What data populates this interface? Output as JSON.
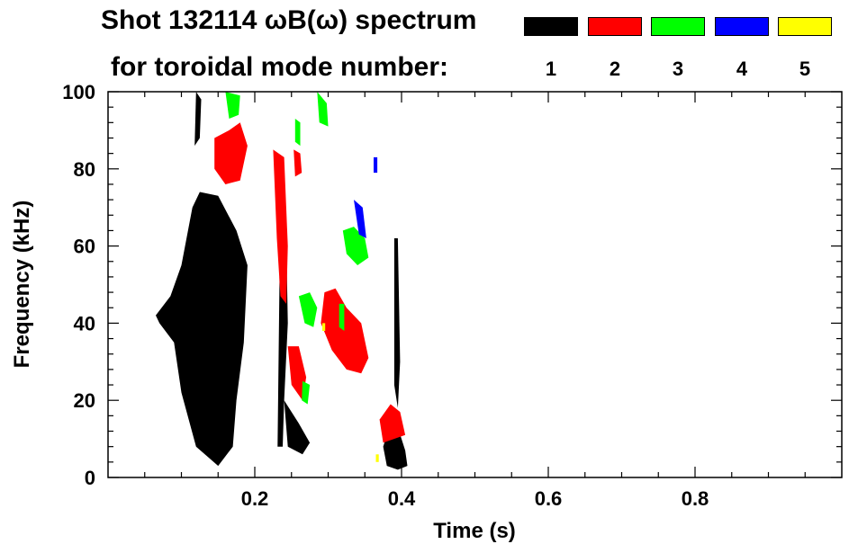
{
  "title": {
    "line1": "Shot 132114 ωB(ω) spectrum",
    "line2": "for toroidal mode number:"
  },
  "legend": [
    {
      "label": "1",
      "color": "#000000"
    },
    {
      "label": "2",
      "color": "#ff0000"
    },
    {
      "label": "3",
      "color": "#00ff00"
    },
    {
      "label": "4",
      "color": "#0000ff"
    },
    {
      "label": "5",
      "color": "#ffff00"
    }
  ],
  "chart_data": {
    "type": "heatmap",
    "title": "Shot 132114 ωB(ω) spectrum for toroidal mode number",
    "xlabel": "Time (s)",
    "ylabel": "Frequency (kHz)",
    "xlim": [
      0.0,
      1.0
    ],
    "ylim": [
      0,
      100
    ],
    "xticks": [
      0.2,
      0.4,
      0.6,
      0.8
    ],
    "xtick_labels": [
      "0.2",
      "0.4",
      "0.6",
      "0.8"
    ],
    "yticks": [
      0,
      20,
      40,
      60,
      80,
      100
    ],
    "ytick_labels": [
      "0",
      "20",
      "40",
      "60",
      "80",
      "100"
    ],
    "grid": false,
    "regions": [
      {
        "mode": 1,
        "color": "#000000",
        "polygon": [
          [
            0.065,
            42
          ],
          [
            0.085,
            47
          ],
          [
            0.1,
            55
          ],
          [
            0.115,
            70
          ],
          [
            0.125,
            74
          ],
          [
            0.15,
            73
          ],
          [
            0.175,
            64
          ],
          [
            0.19,
            55
          ],
          [
            0.185,
            35
          ],
          [
            0.175,
            20
          ],
          [
            0.17,
            8
          ],
          [
            0.15,
            3
          ],
          [
            0.12,
            8
          ],
          [
            0.1,
            22
          ],
          [
            0.09,
            35
          ],
          [
            0.07,
            40
          ]
        ]
      },
      {
        "mode": 1,
        "color": "#000000",
        "polygon": [
          [
            0.12,
            100
          ],
          [
            0.127,
            98
          ],
          [
            0.125,
            88
          ],
          [
            0.118,
            86
          ]
        ]
      },
      {
        "mode": 1,
        "color": "#000000",
        "polygon": [
          [
            0.235,
            72
          ],
          [
            0.242,
            71
          ],
          [
            0.245,
            40
          ],
          [
            0.24,
            20
          ],
          [
            0.238,
            8
          ],
          [
            0.231,
            8
          ],
          [
            0.233,
            40
          ]
        ]
      },
      {
        "mode": 1,
        "color": "#000000",
        "polygon": [
          [
            0.24,
            20
          ],
          [
            0.26,
            14
          ],
          [
            0.275,
            9
          ],
          [
            0.265,
            6
          ],
          [
            0.245,
            8
          ]
        ]
      },
      {
        "mode": 1,
        "color": "#000000",
        "polygon": [
          [
            0.375,
            8
          ],
          [
            0.385,
            14
          ],
          [
            0.395,
            13
          ],
          [
            0.405,
            7
          ],
          [
            0.408,
            3
          ],
          [
            0.395,
            2
          ],
          [
            0.38,
            3
          ]
        ]
      },
      {
        "mode": 1,
        "color": "#000000",
        "polygon": [
          [
            0.39,
            62
          ],
          [
            0.395,
            62
          ],
          [
            0.398,
            30
          ],
          [
            0.395,
            18
          ],
          [
            0.39,
            24
          ]
        ]
      },
      {
        "mode": 2,
        "color": "#ff0000",
        "polygon": [
          [
            0.145,
            88
          ],
          [
            0.165,
            90
          ],
          [
            0.18,
            92
          ],
          [
            0.19,
            86
          ],
          [
            0.18,
            77
          ],
          [
            0.16,
            76
          ],
          [
            0.145,
            80
          ]
        ]
      },
      {
        "mode": 2,
        "color": "#ff0000",
        "polygon": [
          [
            0.225,
            85
          ],
          [
            0.24,
            83
          ],
          [
            0.245,
            60
          ],
          [
            0.243,
            45
          ],
          [
            0.235,
            47
          ],
          [
            0.23,
            62
          ]
        ]
      },
      {
        "mode": 2,
        "color": "#ff0000",
        "polygon": [
          [
            0.245,
            34
          ],
          [
            0.25,
            24
          ],
          [
            0.265,
            20
          ],
          [
            0.27,
            26
          ],
          [
            0.26,
            34
          ]
        ]
      },
      {
        "mode": 2,
        "color": "#ff0000",
        "polygon": [
          [
            0.295,
            48
          ],
          [
            0.31,
            49
          ],
          [
            0.325,
            44
          ],
          [
            0.345,
            40
          ],
          [
            0.355,
            31
          ],
          [
            0.345,
            27
          ],
          [
            0.325,
            28
          ],
          [
            0.305,
            33
          ],
          [
            0.29,
            40
          ]
        ]
      },
      {
        "mode": 2,
        "color": "#ff0000",
        "polygon": [
          [
            0.37,
            15
          ],
          [
            0.385,
            19
          ],
          [
            0.398,
            17
          ],
          [
            0.405,
            11
          ],
          [
            0.375,
            9
          ]
        ]
      },
      {
        "mode": 2,
        "color": "#ff0000",
        "polygon": [
          [
            0.253,
            85
          ],
          [
            0.262,
            84
          ],
          [
            0.264,
            79
          ],
          [
            0.255,
            78
          ]
        ]
      },
      {
        "mode": 3,
        "color": "#00ff00",
        "polygon": [
          [
            0.16,
            100
          ],
          [
            0.18,
            99
          ],
          [
            0.178,
            94
          ],
          [
            0.165,
            93
          ]
        ]
      },
      {
        "mode": 3,
        "color": "#00ff00",
        "polygon": [
          [
            0.285,
            100
          ],
          [
            0.298,
            97
          ],
          [
            0.3,
            91
          ],
          [
            0.288,
            92
          ]
        ]
      },
      {
        "mode": 3,
        "color": "#00ff00",
        "polygon": [
          [
            0.255,
            93
          ],
          [
            0.262,
            92
          ],
          [
            0.262,
            86
          ],
          [
            0.255,
            87
          ]
        ]
      },
      {
        "mode": 3,
        "color": "#00ff00",
        "polygon": [
          [
            0.32,
            64
          ],
          [
            0.335,
            65
          ],
          [
            0.35,
            62
          ],
          [
            0.355,
            57
          ],
          [
            0.34,
            55
          ],
          [
            0.325,
            58
          ]
        ]
      },
      {
        "mode": 3,
        "color": "#00ff00",
        "polygon": [
          [
            0.26,
            47
          ],
          [
            0.275,
            48
          ],
          [
            0.285,
            44
          ],
          [
            0.28,
            39
          ],
          [
            0.268,
            40
          ]
        ]
      },
      {
        "mode": 3,
        "color": "#00ff00",
        "polygon": [
          [
            0.315,
            45
          ],
          [
            0.322,
            45
          ],
          [
            0.322,
            38
          ],
          [
            0.315,
            39
          ]
        ]
      },
      {
        "mode": 3,
        "color": "#00ff00",
        "polygon": [
          [
            0.265,
            25
          ],
          [
            0.275,
            24
          ],
          [
            0.272,
            19
          ],
          [
            0.264,
            20
          ]
        ]
      },
      {
        "mode": 4,
        "color": "#0000ff",
        "polygon": [
          [
            0.335,
            72
          ],
          [
            0.347,
            70
          ],
          [
            0.352,
            62
          ],
          [
            0.342,
            63
          ]
        ]
      },
      {
        "mode": 4,
        "color": "#0000ff",
        "polygon": [
          [
            0.362,
            83
          ],
          [
            0.367,
            83
          ],
          [
            0.367,
            79
          ],
          [
            0.362,
            79
          ]
        ]
      },
      {
        "mode": 5,
        "color": "#ffff00",
        "polygon": [
          [
            0.292,
            40
          ],
          [
            0.296,
            40
          ],
          [
            0.296,
            38
          ],
          [
            0.292,
            38
          ]
        ]
      },
      {
        "mode": 5,
        "color": "#ffff00",
        "polygon": [
          [
            0.365,
            6
          ],
          [
            0.369,
            6
          ],
          [
            0.369,
            4
          ],
          [
            0.365,
            4
          ]
        ]
      }
    ]
  }
}
